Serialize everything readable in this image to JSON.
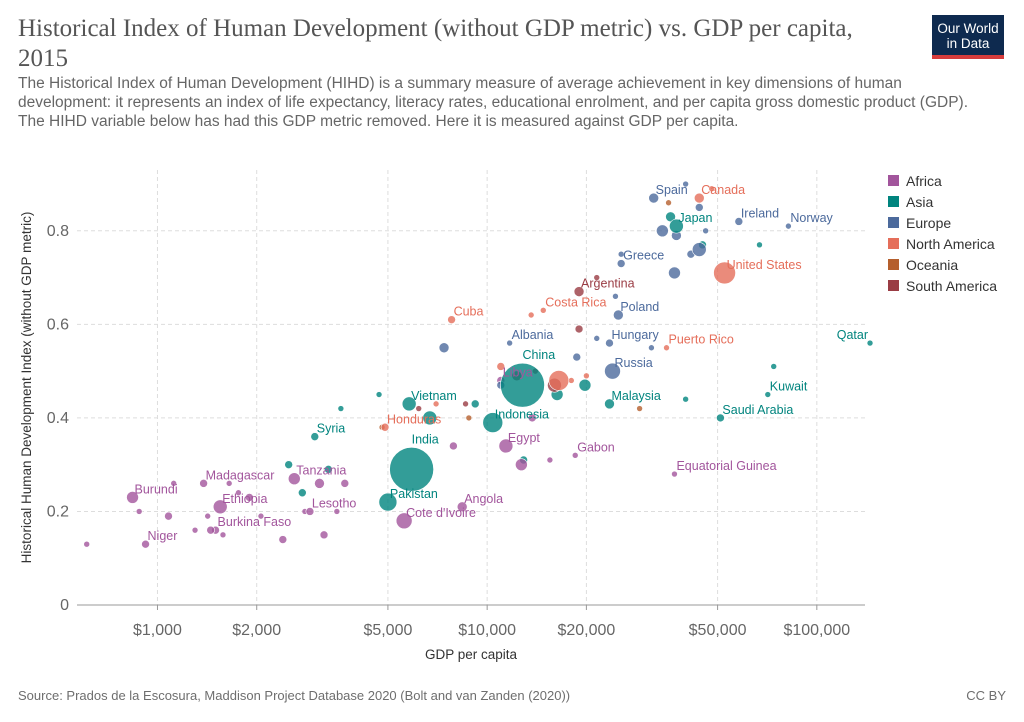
{
  "header": {
    "title": "Historical Index of Human Development (without GDP metric) vs. GDP per capita, 2015",
    "subtitle": "The Historical Index of Human Development (HIHD) is a summary measure of average achievement in key dimensions of human development: it represents an index of life expectancy, literacy rates, educational enrolment, and per capita gross domestic product (GDP). The HIHD variable below has had this GDP metric removed. Here it is measured against GDP per capita.",
    "logo_line1": "Our World",
    "logo_line2": "in Data"
  },
  "footer": {
    "source": "Source: Prados de la Escosura, Maddison Project Database 2020 (Bolt and van Zanden (2020))",
    "license": "CC BY"
  },
  "colors": {
    "Africa": "#a2559c",
    "Asia": "#00847e",
    "Europe": "#4c6a9c",
    "North America": "#e56e5a",
    "Oceania": "#b55f2d",
    "South America": "#9a3c44"
  },
  "legend": [
    "Africa",
    "Asia",
    "Europe",
    "North America",
    "Oceania",
    "South America"
  ],
  "chart_data": {
    "type": "scatter",
    "xlabel": "GDP per capita",
    "ylabel": "Historical Human Development Index (without GDP metric)",
    "x_scale": "log",
    "xlim": [
      570,
      140000
    ],
    "ylim": [
      0,
      0.93
    ],
    "x_ticks": [
      1000,
      2000,
      5000,
      10000,
      20000,
      50000,
      100000
    ],
    "x_tick_labels": [
      "$1,000",
      "$2,000",
      "$5,000",
      "$10,000",
      "$20,000",
      "$50,000",
      "$100,000"
    ],
    "y_ticks": [
      0,
      0.2,
      0.4,
      0.6,
      0.8
    ],
    "y_tick_labels": [
      "0",
      "0.2",
      "0.4",
      "0.6",
      "0.8"
    ],
    "grid": true,
    "legend_position": "right",
    "points": [
      {
        "label": "Burundi",
        "x": 840,
        "y": 0.23,
        "region": "Africa",
        "size": 6
      },
      {
        "label": "Madagascar",
        "x": 1380,
        "y": 0.26,
        "region": "Africa",
        "size": 4
      },
      {
        "label": "Ethiopia",
        "x": 1550,
        "y": 0.21,
        "region": "Africa",
        "size": 7
      },
      {
        "label": "Tanzania",
        "x": 2600,
        "y": 0.27,
        "region": "Africa",
        "size": 6
      },
      {
        "label": "Lesotho",
        "x": 2900,
        "y": 0.2,
        "region": "Africa",
        "size": 4
      },
      {
        "label": "Burkina Faso",
        "x": 1500,
        "y": 0.16,
        "region": "Africa",
        "size": 4
      },
      {
        "label": "Niger",
        "x": 920,
        "y": 0.13,
        "region": "Africa",
        "size": 4
      },
      {
        "label": "Cote d'Ivoire",
        "x": 5600,
        "y": 0.18,
        "region": "Africa",
        "size": 8
      },
      {
        "label": "Angola",
        "x": 8400,
        "y": 0.21,
        "region": "Africa",
        "size": 5
      },
      {
        "label": "Egypt",
        "x": 11400,
        "y": 0.34,
        "region": "Africa",
        "size": 7
      },
      {
        "label": "Gabon",
        "x": 18500,
        "y": 0.32,
        "region": "Africa",
        "size": 3
      },
      {
        "label": "Equatorial Guinea",
        "x": 37000,
        "y": 0.28,
        "region": "Africa",
        "size": 3
      },
      {
        "label": "Libya",
        "x": 11000,
        "y": 0.48,
        "region": "Africa",
        "size": 4
      },
      {
        "label": "",
        "x": 610,
        "y": 0.13,
        "region": "Africa",
        "size": 3
      },
      {
        "label": "",
        "x": 880,
        "y": 0.2,
        "region": "Africa",
        "size": 3
      },
      {
        "label": "",
        "x": 1080,
        "y": 0.19,
        "region": "Africa",
        "size": 4
      },
      {
        "label": "",
        "x": 1120,
        "y": 0.26,
        "region": "Africa",
        "size": 3
      },
      {
        "label": "",
        "x": 1300,
        "y": 0.16,
        "region": "Africa",
        "size": 3
      },
      {
        "label": "",
        "x": 1420,
        "y": 0.19,
        "region": "Africa",
        "size": 3
      },
      {
        "label": "",
        "x": 1450,
        "y": 0.16,
        "region": "Africa",
        "size": 4
      },
      {
        "label": "",
        "x": 1580,
        "y": 0.15,
        "region": "Africa",
        "size": 3
      },
      {
        "label": "",
        "x": 1650,
        "y": 0.26,
        "region": "Africa",
        "size": 3
      },
      {
        "label": "",
        "x": 1760,
        "y": 0.24,
        "region": "Africa",
        "size": 3
      },
      {
        "label": "",
        "x": 1900,
        "y": 0.23,
        "region": "Africa",
        "size": 4
      },
      {
        "label": "",
        "x": 2060,
        "y": 0.19,
        "region": "Africa",
        "size": 3
      },
      {
        "label": "",
        "x": 2400,
        "y": 0.14,
        "region": "Africa",
        "size": 4
      },
      {
        "label": "",
        "x": 2800,
        "y": 0.2,
        "region": "Africa",
        "size": 3
      },
      {
        "label": "",
        "x": 3100,
        "y": 0.26,
        "region": "Africa",
        "size": 5
      },
      {
        "label": "",
        "x": 3200,
        "y": 0.15,
        "region": "Africa",
        "size": 4
      },
      {
        "label": "",
        "x": 3500,
        "y": 0.2,
        "region": "Africa",
        "size": 3
      },
      {
        "label": "",
        "x": 3700,
        "y": 0.26,
        "region": "Africa",
        "size": 4
      },
      {
        "label": "",
        "x": 7900,
        "y": 0.34,
        "region": "Africa",
        "size": 4
      },
      {
        "label": "",
        "x": 12700,
        "y": 0.3,
        "region": "Africa",
        "size": 6
      },
      {
        "label": "",
        "x": 13700,
        "y": 0.4,
        "region": "Africa",
        "size": 4
      },
      {
        "label": "",
        "x": 15500,
        "y": 0.31,
        "region": "Africa",
        "size": 3
      },
      {
        "label": "China",
        "x": 12800,
        "y": 0.47,
        "region": "Asia",
        "size": 22
      },
      {
        "label": "India",
        "x": 5900,
        "y": 0.29,
        "region": "Asia",
        "size": 22
      },
      {
        "label": "Pakistan",
        "x": 5000,
        "y": 0.22,
        "region": "Asia",
        "size": 9
      },
      {
        "label": "Indonesia",
        "x": 10400,
        "y": 0.39,
        "region": "Asia",
        "size": 10
      },
      {
        "label": "Vietnam",
        "x": 5800,
        "y": 0.43,
        "region": "Asia",
        "size": 7
      },
      {
        "label": "Syria",
        "x": 3000,
        "y": 0.36,
        "region": "Asia",
        "size": 4
      },
      {
        "label": "Malaysia",
        "x": 23500,
        "y": 0.43,
        "region": "Asia",
        "size": 5
      },
      {
        "label": "Japan",
        "x": 37500,
        "y": 0.81,
        "region": "Asia",
        "size": 7
      },
      {
        "label": "Kuwait",
        "x": 71000,
        "y": 0.45,
        "region": "Asia",
        "size": 3
      },
      {
        "label": "Saudi Arabia",
        "x": 51000,
        "y": 0.4,
        "region": "Asia",
        "size": 4
      },
      {
        "label": "Qatar",
        "x": 145000,
        "y": 0.56,
        "region": "Asia",
        "size": 3
      },
      {
        "label": "",
        "x": 2500,
        "y": 0.3,
        "region": "Asia",
        "size": 4
      },
      {
        "label": "",
        "x": 2750,
        "y": 0.24,
        "region": "Asia",
        "size": 4
      },
      {
        "label": "",
        "x": 3300,
        "y": 0.29,
        "region": "Asia",
        "size": 4
      },
      {
        "label": "",
        "x": 3600,
        "y": 0.42,
        "region": "Asia",
        "size": 3
      },
      {
        "label": "",
        "x": 4700,
        "y": 0.45,
        "region": "Asia",
        "size": 3
      },
      {
        "label": "",
        "x": 6700,
        "y": 0.4,
        "region": "Asia",
        "size": 7
      },
      {
        "label": "",
        "x": 9200,
        "y": 0.43,
        "region": "Asia",
        "size": 4
      },
      {
        "label": "",
        "x": 12900,
        "y": 0.31,
        "region": "Asia",
        "size": 4
      },
      {
        "label": "",
        "x": 16300,
        "y": 0.45,
        "region": "Asia",
        "size": 6
      },
      {
        "label": "",
        "x": 19800,
        "y": 0.47,
        "region": "Asia",
        "size": 6
      },
      {
        "label": "",
        "x": 36000,
        "y": 0.83,
        "region": "Asia",
        "size": 5
      },
      {
        "label": "",
        "x": 40000,
        "y": 0.44,
        "region": "Asia",
        "size": 3
      },
      {
        "label": "",
        "x": 45000,
        "y": 0.77,
        "region": "Asia",
        "size": 4
      },
      {
        "label": "",
        "x": 67000,
        "y": 0.77,
        "region": "Asia",
        "size": 3
      },
      {
        "label": "",
        "x": 74000,
        "y": 0.51,
        "region": "Asia",
        "size": 3
      },
      {
        "label": "Spain",
        "x": 32000,
        "y": 0.87,
        "region": "Europe",
        "size": 5
      },
      {
        "label": "Ireland",
        "x": 58000,
        "y": 0.82,
        "region": "Europe",
        "size": 4
      },
      {
        "label": "Norway",
        "x": 82000,
        "y": 0.81,
        "region": "Europe",
        "size": 3
      },
      {
        "label": "Greece",
        "x": 25500,
        "y": 0.73,
        "region": "Europe",
        "size": 4
      },
      {
        "label": "Poland",
        "x": 25000,
        "y": 0.62,
        "region": "Europe",
        "size": 5
      },
      {
        "label": "Hungary",
        "x": 23500,
        "y": 0.56,
        "region": "Europe",
        "size": 4
      },
      {
        "label": "Russia",
        "x": 24000,
        "y": 0.5,
        "region": "Europe",
        "size": 8
      },
      {
        "label": "Albania",
        "x": 11700,
        "y": 0.56,
        "region": "Europe",
        "size": 3
      },
      {
        "label": "",
        "x": 7400,
        "y": 0.55,
        "region": "Europe",
        "size": 5
      },
      {
        "label": "",
        "x": 11000,
        "y": 0.47,
        "region": "Europe",
        "size": 4
      },
      {
        "label": "",
        "x": 18700,
        "y": 0.53,
        "region": "Europe",
        "size": 4
      },
      {
        "label": "",
        "x": 21500,
        "y": 0.57,
        "region": "Europe",
        "size": 3
      },
      {
        "label": "",
        "x": 24500,
        "y": 0.66,
        "region": "Europe",
        "size": 3
      },
      {
        "label": "",
        "x": 31500,
        "y": 0.55,
        "region": "Europe",
        "size": 3
      },
      {
        "label": "",
        "x": 34000,
        "y": 0.8,
        "region": "Europe",
        "size": 6
      },
      {
        "label": "",
        "x": 37000,
        "y": 0.71,
        "region": "Europe",
        "size": 6
      },
      {
        "label": "",
        "x": 37500,
        "y": 0.79,
        "region": "Europe",
        "size": 5
      },
      {
        "label": "",
        "x": 40000,
        "y": 0.9,
        "region": "Europe",
        "size": 3
      },
      {
        "label": "",
        "x": 41500,
        "y": 0.75,
        "region": "Europe",
        "size": 4
      },
      {
        "label": "",
        "x": 44000,
        "y": 0.76,
        "region": "Europe",
        "size": 7
      },
      {
        "label": "",
        "x": 44000,
        "y": 0.85,
        "region": "Europe",
        "size": 4
      },
      {
        "label": "",
        "x": 46000,
        "y": 0.8,
        "region": "Europe",
        "size": 3
      },
      {
        "label": "",
        "x": 25500,
        "y": 0.75,
        "region": "Europe",
        "size": 3
      },
      {
        "label": "Canada",
        "x": 44000,
        "y": 0.87,
        "region": "North America",
        "size": 5
      },
      {
        "label": "United States",
        "x": 52500,
        "y": 0.71,
        "region": "North America",
        "size": 11
      },
      {
        "label": "Cuba",
        "x": 7800,
        "y": 0.61,
        "region": "North America",
        "size": 4
      },
      {
        "label": "Costa Rica",
        "x": 14800,
        "y": 0.63,
        "region": "North America",
        "size": 3
      },
      {
        "label": "Puerto Rico",
        "x": 35000,
        "y": 0.55,
        "region": "North America",
        "size": 3
      },
      {
        "label": "Honduras",
        "x": 4900,
        "y": 0.38,
        "region": "North America",
        "size": 4
      },
      {
        "label": "",
        "x": 11000,
        "y": 0.51,
        "region": "North America",
        "size": 4
      },
      {
        "label": "",
        "x": 13600,
        "y": 0.62,
        "region": "North America",
        "size": 3
      },
      {
        "label": "",
        "x": 16500,
        "y": 0.48,
        "region": "North America",
        "size": 10
      },
      {
        "label": "",
        "x": 18000,
        "y": 0.48,
        "region": "North America",
        "size": 3
      },
      {
        "label": "",
        "x": 20000,
        "y": 0.49,
        "region": "North America",
        "size": 3
      },
      {
        "label": "",
        "x": 7000,
        "y": 0.43,
        "region": "North America",
        "size": 3
      },
      {
        "label": "",
        "x": 48000,
        "y": 0.89,
        "region": "North America",
        "size": 3
      },
      {
        "label": "",
        "x": 8800,
        "y": 0.4,
        "region": "Oceania",
        "size": 3
      },
      {
        "label": "",
        "x": 29000,
        "y": 0.42,
        "region": "Oceania",
        "size": 3
      },
      {
        "label": "",
        "x": 35500,
        "y": 0.86,
        "region": "Oceania",
        "size": 3
      },
      {
        "label": "",
        "x": 4800,
        "y": 0.38,
        "region": "Oceania",
        "size": 3
      },
      {
        "label": "Argentina",
        "x": 19000,
        "y": 0.67,
        "region": "South America",
        "size": 5
      },
      {
        "label": "",
        "x": 6200,
        "y": 0.42,
        "region": "South America",
        "size": 3
      },
      {
        "label": "",
        "x": 8600,
        "y": 0.43,
        "region": "South America",
        "size": 3
      },
      {
        "label": "",
        "x": 12300,
        "y": 0.49,
        "region": "South America",
        "size": 5
      },
      {
        "label": "",
        "x": 14000,
        "y": 0.5,
        "region": "South America",
        "size": 3
      },
      {
        "label": "",
        "x": 16000,
        "y": 0.47,
        "region": "South America",
        "size": 7
      },
      {
        "label": "",
        "x": 19000,
        "y": 0.59,
        "region": "South America",
        "size": 4
      },
      {
        "label": "",
        "x": 21500,
        "y": 0.7,
        "region": "South America",
        "size": 3
      }
    ]
  }
}
